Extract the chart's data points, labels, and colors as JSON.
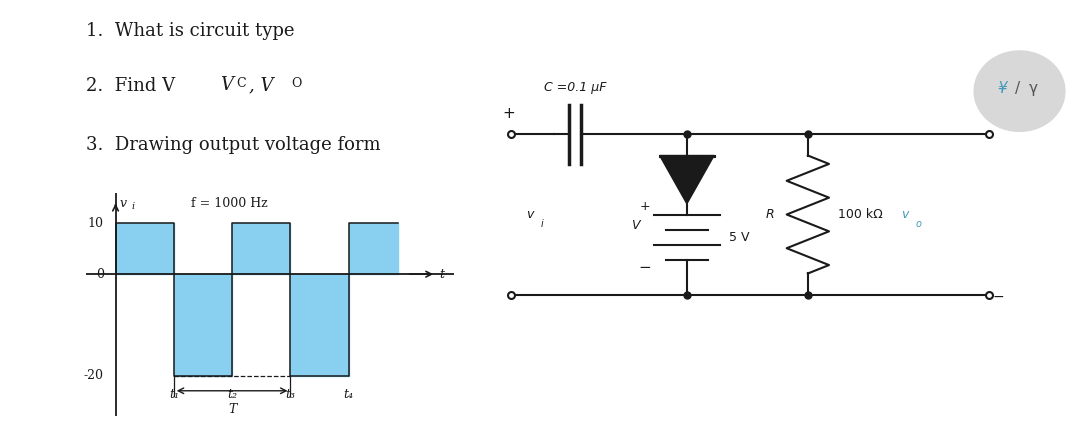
{
  "bg_color": "#ffffff",
  "text_color": "#1a1a1a",
  "bar_color": "#89CFF0",
  "waveform": {
    "ylim": [
      -28,
      16
    ],
    "xlim": [
      -0.5,
      5.8
    ]
  },
  "circuit": {
    "c_label": "C =0.1 μF",
    "r_val": "100 kΩ",
    "v_val": "5 V",
    "vo_color": "#4499bb"
  }
}
